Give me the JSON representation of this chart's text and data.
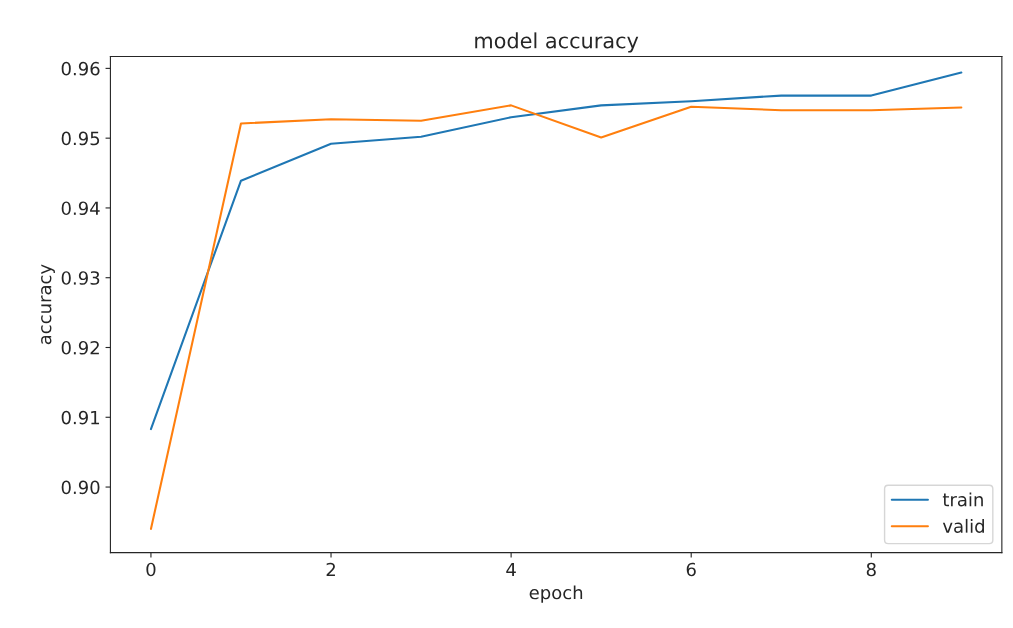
{
  "chart_data": {
    "type": "line",
    "title": "model accuracy",
    "xlabel": "epoch",
    "ylabel": "accuracy",
    "x": [
      0,
      1,
      2,
      3,
      4,
      5,
      6,
      7,
      8,
      9
    ],
    "series": [
      {
        "name": "train",
        "color": "#1f77b4",
        "values": [
          0.9083,
          0.9439,
          0.9492,
          0.9502,
          0.953,
          0.9547,
          0.9553,
          0.9561,
          0.9561,
          0.9594
        ]
      },
      {
        "name": "valid",
        "color": "#ff7f0e",
        "values": [
          0.894,
          0.9521,
          0.9527,
          0.9525,
          0.9547,
          0.9501,
          0.9545,
          0.954,
          0.954,
          0.9544
        ]
      }
    ],
    "xlim": [
      -0.45,
      9.45
    ],
    "ylim": [
      0.8906,
      0.9617
    ],
    "xticks": [
      0,
      2,
      4,
      6,
      8
    ],
    "yticks": [
      {
        "value": 0.9,
        "label": "0.90"
      },
      0.91,
      0.92,
      0.93,
      0.94,
      0.95,
      0.96
    ],
    "legend": "lower right",
    "grid": false,
    "marker": "none",
    "line_style": "solid"
  }
}
